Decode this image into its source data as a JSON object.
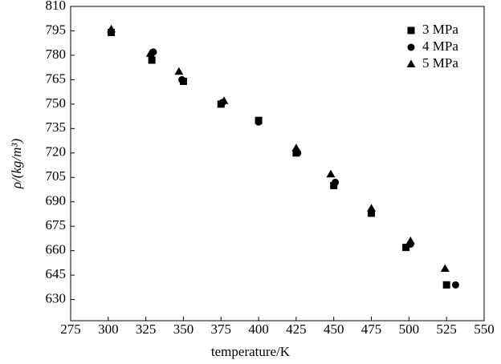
{
  "chart_data": {
    "type": "scatter",
    "xlabel": "temperature/K",
    "ylabel": "ρ/(kg/m³)",
    "xlim": [
      275,
      550
    ],
    "xticks": [
      275,
      300,
      325,
      350,
      375,
      400,
      425,
      450,
      475,
      500,
      525,
      550
    ],
    "ylim": [
      617,
      810
    ],
    "yticks": [
      630,
      645,
      660,
      675,
      690,
      705,
      720,
      735,
      750,
      765,
      780,
      795,
      810
    ],
    "legend": "upper-right",
    "series": [
      {
        "name": "3 MPa",
        "marker": "square",
        "color": "#000000",
        "x": [
          302,
          329,
          350,
          375,
          400,
          425,
          450,
          475,
          498,
          525
        ],
        "values": [
          794,
          777,
          764,
          750,
          740,
          720,
          700,
          683,
          662,
          639
        ]
      },
      {
        "name": "4 MPa",
        "marker": "circle",
        "color": "#000000",
        "x": [
          302,
          330,
          349,
          376,
          400,
          426,
          451,
          475,
          501,
          531
        ],
        "values": [
          794,
          782,
          765,
          751,
          739,
          720,
          702,
          684,
          664,
          639
        ]
      },
      {
        "name": "5 MPa",
        "marker": "triangle",
        "color": "#000000",
        "x": [
          302,
          328,
          347,
          377,
          425,
          448,
          475,
          501,
          524
        ],
        "values": [
          796,
          781,
          770,
          752,
          723,
          707,
          686,
          666,
          649
        ]
      }
    ]
  }
}
